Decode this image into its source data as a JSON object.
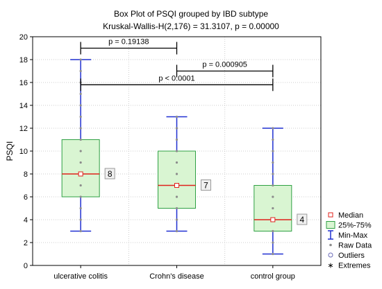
{
  "chart_data": {
    "type": "box",
    "title": "Box Plot of PSQI grouped by  IBD subtype",
    "subtitle": "Kruskal-Wallis-H(2,176) = 31.3107, p = 0.00000",
    "ylabel": "PSQI",
    "xlabel": "",
    "ylim": [
      0,
      20
    ],
    "yticks": [
      0,
      2,
      4,
      6,
      8,
      10,
      12,
      14,
      16,
      18,
      20
    ],
    "grid": true,
    "legend_position": "bottom-right",
    "categories": [
      "ulcerative colitis",
      "Crohn's disease",
      "control group"
    ],
    "boxes": [
      {
        "category": "ulcerative colitis",
        "min": 3,
        "q1": 6,
        "median": 8,
        "q3": 11,
        "max": 18,
        "median_label": "8",
        "raw": [
          3,
          4,
          5,
          6,
          7,
          8,
          9,
          10,
          11,
          12,
          13,
          14,
          15,
          16,
          17,
          18
        ]
      },
      {
        "category": "Crohn's disease",
        "min": 3,
        "q1": 5,
        "median": 7,
        "q3": 10,
        "max": 13,
        "median_label": "7",
        "raw": [
          3,
          4,
          5,
          6,
          7,
          8,
          9,
          10,
          11,
          12,
          13
        ]
      },
      {
        "category": "control group",
        "min": 1,
        "q1": 3,
        "median": 4,
        "q3": 7,
        "max": 12,
        "median_label": "4",
        "raw": [
          1,
          2,
          3,
          4,
          5,
          6,
          7,
          8,
          9,
          10,
          11,
          12
        ]
      }
    ],
    "comparisons": [
      {
        "from": 0,
        "to": 1,
        "y": 19.0,
        "label": "p = 0.19138"
      },
      {
        "from": 1,
        "to": 2,
        "y": 17.0,
        "label": "p = 0.000905"
      },
      {
        "from": 0,
        "to": 2,
        "y": 15.8,
        "label": "p < 0.0001"
      }
    ],
    "legend": [
      {
        "key": "median",
        "label": "Median"
      },
      {
        "key": "iqr",
        "label": "25%-75%"
      },
      {
        "key": "minmax",
        "label": "Min-Max"
      },
      {
        "key": "raw",
        "label": "Raw Data"
      },
      {
        "key": "outliers",
        "label": "Outliers"
      },
      {
        "key": "extremes",
        "label": "Extremes"
      }
    ],
    "colors": {
      "box_fill": "#d9f5d2",
      "box_stroke": "#2ea043",
      "whisker": "#1f2fd1",
      "median": "#e0201b",
      "raw": "#8c8c8c",
      "grid": "#cccccc",
      "extremes": "#e0201b"
    }
  }
}
